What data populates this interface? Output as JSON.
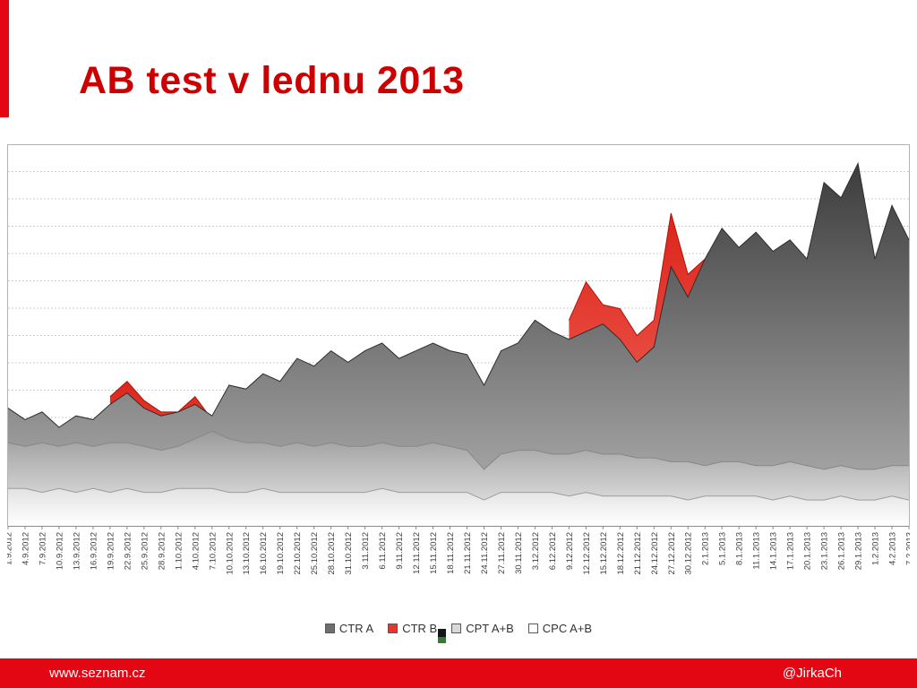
{
  "slide": {
    "title": "AB test v lednu 2013",
    "footer_left": "www.seznam.cz",
    "footer_right": "@JirkaCh"
  },
  "colors": {
    "title_red": "#cc0000",
    "footer_red": "#e30613",
    "accent_bar_red": "#e30613",
    "grid_gray": "#bdbdbd",
    "plot_border": "#b3b3b3"
  },
  "chart_data": {
    "type": "area",
    "title": "",
    "xlabel": "",
    "ylabel": "",
    "ylim": [
      0,
      100
    ],
    "y_axis_labels_visible": false,
    "gridlines": {
      "count": 14,
      "style": "dotted-horizontal"
    },
    "legend_position": "bottom-center",
    "paint_order": [
      "CTR B",
      "CTR A",
      "CPT A+B",
      "CPC A+B"
    ],
    "x_tick_labels": [
      "1.9.2012",
      "4.9.2012",
      "7.9.2012",
      "10.9.2012",
      "13.9.2012",
      "16.9.2012",
      "19.9.2012",
      "22.9.2012",
      "25.9.2012",
      "28.9.2012",
      "1.10.2012",
      "4.10.2012",
      "7.10.2012",
      "10.10.2012",
      "13.10.2012",
      "16.10.2012",
      "19.10.2012",
      "22.10.2012",
      "25.10.2012",
      "28.10.2012",
      "31.10.2012",
      "3.11.2012",
      "6.11.2012",
      "9.11.2012",
      "12.11.2012",
      "15.11.2012",
      "18.11.2012",
      "21.11.2012",
      "24.11.2012",
      "27.11.2012",
      "30.11.2012",
      "3.12.2012",
      "6.12.2012",
      "9.12.2012",
      "12.12.2012",
      "15.12.2012",
      "18.12.2012",
      "21.12.2012",
      "24.12.2012",
      "27.12.2012",
      "30.12.2012",
      "2.1.2013",
      "5.1.2013",
      "8.1.2013",
      "11.1.2013",
      "14.1.2013",
      "17.1.2013",
      "20.1.2013",
      "23.1.2013",
      "26.1.2013",
      "29.1.2013",
      "1.2.2013",
      "4.2.2013",
      "7.2.2013"
    ],
    "series": [
      {
        "name": "CTR A",
        "legend_fill": "#6e6e6e",
        "fill_top": "#3c3c3c",
        "fill_bottom": "#b4b4b4",
        "stroke": "#2e2e2e",
        "values": [
          31,
          28,
          30,
          26,
          29,
          28,
          32,
          35,
          31,
          29,
          30,
          32,
          29,
          37,
          36,
          40,
          38,
          44,
          42,
          46,
          43,
          46,
          48,
          44,
          46,
          48,
          46,
          45,
          37,
          46,
          48,
          54,
          51,
          49,
          51,
          53,
          49,
          43,
          47,
          68,
          60,
          70,
          78,
          73,
          77,
          72,
          75,
          70,
          90,
          86,
          95,
          70,
          84,
          75
        ]
      },
      {
        "name": "CTR B",
        "legend_fill": "#e8362c",
        "fill_top": "#dd2419",
        "fill_bottom": "#f4746a",
        "stroke": "#b01408",
        "values": [
          null,
          null,
          null,
          null,
          null,
          null,
          34,
          38,
          33,
          30,
          30,
          34,
          28,
          null,
          null,
          null,
          null,
          null,
          null,
          null,
          null,
          null,
          null,
          null,
          null,
          null,
          null,
          null,
          null,
          null,
          null,
          null,
          null,
          54,
          64,
          58,
          57,
          50,
          54,
          82,
          66,
          70,
          null,
          null,
          null,
          null,
          null,
          null,
          null,
          null,
          null,
          null,
          null,
          null
        ]
      },
      {
        "name": "CPT A+B",
        "legend_fill": "#d9d9d9",
        "fill_top": "#9b9b9b",
        "fill_bottom": "#efefef",
        "stroke": "#878787",
        "values": [
          22,
          21,
          22,
          21,
          22,
          21,
          22,
          22,
          21,
          20,
          21,
          23,
          25,
          23,
          22,
          22,
          21,
          22,
          21,
          22,
          21,
          21,
          22,
          21,
          21,
          22,
          21,
          20,
          15,
          19,
          20,
          20,
          19,
          19,
          20,
          19,
          19,
          18,
          18,
          17,
          17,
          16,
          17,
          17,
          16,
          16,
          17,
          16,
          15,
          16,
          15,
          15,
          16,
          16
        ]
      },
      {
        "name": "CPC A+B",
        "legend_fill": "#ffffff",
        "fill_top": "#e2e2e2",
        "fill_bottom": "#ffffff",
        "stroke": "#9b9b9b",
        "values": [
          10,
          10,
          9,
          10,
          9,
          10,
          9,
          10,
          9,
          9,
          10,
          10,
          10,
          9,
          9,
          10,
          9,
          9,
          9,
          9,
          9,
          9,
          10,
          9,
          9,
          9,
          9,
          9,
          7,
          9,
          9,
          9,
          9,
          8,
          9,
          8,
          8,
          8,
          8,
          8,
          7,
          8,
          8,
          8,
          8,
          7,
          8,
          7,
          7,
          8,
          7,
          7,
          8,
          7
        ]
      }
    ]
  }
}
